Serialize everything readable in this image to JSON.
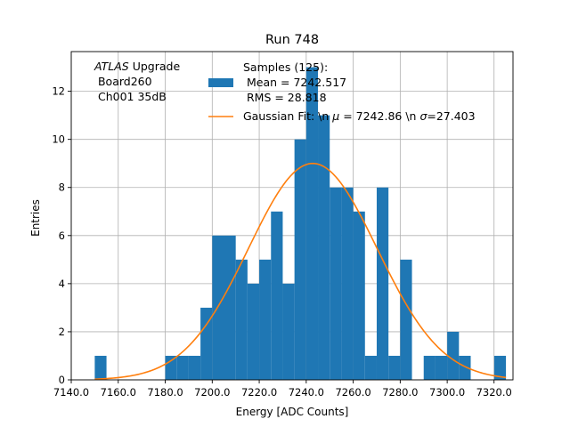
{
  "chart_data": {
    "type": "bar",
    "title": "Run 748",
    "xlabel": "Energy [ADC Counts]",
    "ylabel": "Entries",
    "xlim": [
      7140.07,
      7328.07
    ],
    "ylim": [
      0,
      13.65
    ],
    "x_ticks": [
      7140.07,
      7160.07,
      7180.07,
      7200.07,
      7220.07,
      7240.07,
      7260.07,
      7280.07,
      7300.07,
      7320.0
    ],
    "x_tick_labels": [
      "7140.0",
      "7160.0",
      "7180.0",
      "7200.0",
      "7220.0",
      "7240.0",
      "7260.0",
      "7280.0",
      "7300.0",
      "7320.0"
    ],
    "y_ticks": [
      0,
      2,
      4,
      6,
      8,
      10,
      12
    ],
    "bin_edges": [
      7150.07,
      7155.07,
      7160.07,
      7165.07,
      7170.07,
      7175.07,
      7180.07,
      7185.07,
      7190.07,
      7195.07,
      7200.07,
      7205.07,
      7210.07,
      7215.07,
      7220.07,
      7225.07,
      7230.07,
      7235.07,
      7240.07,
      7245.07,
      7250.07,
      7255.07,
      7260.07,
      7265.07,
      7270.07,
      7275.07,
      7280.07,
      7285.07,
      7290.07,
      7295.07,
      7300.07,
      7305.07,
      7310.07,
      7315.07,
      7320.07,
      7325.07
    ],
    "bar_width": 5,
    "values": [
      1,
      0,
      0,
      0,
      0,
      0,
      1,
      1,
      1,
      3,
      6,
      6,
      5,
      4,
      5,
      7,
      4,
      10,
      13,
      11,
      8,
      8,
      7,
      1,
      8,
      1,
      5,
      0,
      1,
      1,
      2,
      1,
      0,
      0,
      1
    ],
    "bar_color": "#1f77b4",
    "fit": {
      "name": "Gaussian Fit: \\n $\\mu$ = 7242.86 \\n $\\sigma$=27.403",
      "mu": 7242.86,
      "sigma": 27.403,
      "amplitude": 9.0,
      "x_range": [
        7150.07,
        7325.07
      ],
      "color": "#ff7f0e"
    },
    "legend": {
      "placement": "top-center",
      "hist_label_lines": [
        "Samples (125):",
        " Mean = 7242.517",
        " RMS = 28.818"
      ],
      "fit_label_prefix": "Gaussian Fit: \\n ",
      "fit_label_mu": "μ",
      "fit_label_mid": " = 7242.86 \\n ",
      "fit_label_sigma": "σ",
      "fit_label_suffix": "=27.403"
    },
    "annotation": {
      "lines": [
        "ATLAS Upgrade",
        " Board260",
        " Ch001 35dB"
      ],
      "italic_word": "ATLAS",
      "rest_of_first_line": " Upgrade"
    },
    "grid": true
  }
}
